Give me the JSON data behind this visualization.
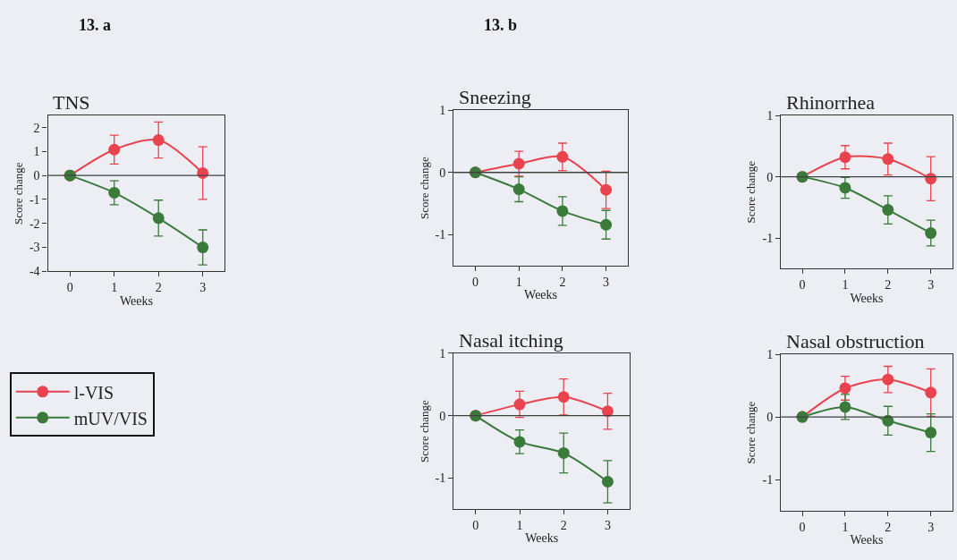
{
  "chart_data": [
    {
      "type": "line",
      "title": "TNS",
      "xlabel": "Weeks",
      "ylabel": "Score change",
      "annotations": [
        "13. a"
      ],
      "x": [
        0,
        1,
        2,
        3
      ],
      "xlim": [
        -0.5,
        3.5
      ],
      "xticks": [
        0,
        1,
        2,
        3
      ],
      "ylim": [
        -4,
        2.5
      ],
      "yticks": [
        -4,
        -3,
        -2,
        -1,
        0,
        1,
        2
      ],
      "grid": false,
      "marker": "circle",
      "line_style": "solid",
      "legend": "bottom",
      "ref_lines": [
        {
          "axis": "y",
          "value": 0,
          "color": "#404040"
        }
      ],
      "series": [
        {
          "name": "l-VIS",
          "color": "#e8434f",
          "values": [
            0,
            1.08,
            1.48,
            0.1
          ],
          "errors": [
            null,
            0.6,
            0.75,
            1.1
          ]
        },
        {
          "name": "mUV/VIS",
          "color": "#3a7a3a",
          "values": [
            0,
            -0.72,
            -1.78,
            -3.0
          ],
          "errors": [
            null,
            0.5,
            0.75,
            0.73
          ]
        }
      ]
    },
    {
      "type": "line",
      "title": "Sneezing",
      "xlabel": "Weeks",
      "ylabel": "Score change",
      "annotations": [
        "13. b"
      ],
      "x": [
        0,
        1,
        2,
        3
      ],
      "xlim": [
        -0.5,
        3.5
      ],
      "xticks": [
        0,
        1,
        2,
        3
      ],
      "ylim": [
        -1.5,
        1
      ],
      "yticks": [
        -1,
        0,
        1
      ],
      "grid": false,
      "marker": "circle",
      "line_style": "solid",
      "ref_lines": [
        {
          "axis": "y",
          "value": 0,
          "color": "#404040"
        }
      ],
      "series": [
        {
          "color": "#e8434f",
          "values": [
            0,
            0.14,
            0.25,
            -0.28
          ],
          "errors": [
            null,
            0.2,
            0.22,
            0.3
          ]
        },
        {
          "color": "#3a7a3a",
          "values": [
            0,
            -0.27,
            -0.62,
            -0.84
          ],
          "errors": [
            null,
            0.2,
            0.23,
            0.23
          ]
        }
      ]
    },
    {
      "type": "line",
      "title": "Rhinorrhea",
      "xlabel": "Weeks",
      "ylabel": "Score change",
      "x": [
        0,
        1,
        2,
        3
      ],
      "xlim": [
        -0.5,
        3.5
      ],
      "xticks": [
        0,
        1,
        2,
        3
      ],
      "ylim": [
        -1.5,
        1
      ],
      "yticks": [
        -1,
        0,
        1
      ],
      "grid": false,
      "marker": "circle",
      "line_style": "solid",
      "ref_lines": [
        {
          "axis": "y",
          "value": 0,
          "color": "#404040"
        }
      ],
      "series": [
        {
          "color": "#e8434f",
          "values": [
            0,
            0.32,
            0.29,
            -0.03
          ],
          "errors": [
            null,
            0.19,
            0.26,
            0.36
          ]
        },
        {
          "color": "#3a7a3a",
          "values": [
            0,
            -0.18,
            -0.54,
            -0.92
          ],
          "errors": [
            null,
            0.17,
            0.23,
            0.21
          ]
        }
      ]
    },
    {
      "type": "line",
      "title": "Nasal itching",
      "xlabel": "Weeks",
      "ylabel": "Score change",
      "x": [
        0,
        1,
        2,
        3
      ],
      "xlim": [
        -0.5,
        3.5
      ],
      "xticks": [
        0,
        1,
        2,
        3
      ],
      "ylim": [
        -1.5,
        1
      ],
      "yticks": [
        -1,
        0,
        1
      ],
      "grid": false,
      "marker": "circle",
      "line_style": "solid",
      "ref_lines": [
        {
          "axis": "y",
          "value": 0,
          "color": "#404040"
        }
      ],
      "series": [
        {
          "color": "#e8434f",
          "values": [
            0,
            0.18,
            0.3,
            0.07
          ],
          "errors": [
            null,
            0.21,
            0.29,
            0.29
          ]
        },
        {
          "color": "#3a7a3a",
          "values": [
            0,
            -0.42,
            -0.6,
            -1.06
          ],
          "errors": [
            null,
            0.19,
            0.32,
            0.34
          ]
        }
      ]
    },
    {
      "type": "line",
      "title": "Nasal obstruction",
      "xlabel": "Weeks",
      "ylabel": "Score change",
      "x": [
        0,
        1,
        2,
        3
      ],
      "xlim": [
        -0.5,
        3.5
      ],
      "xticks": [
        0,
        1,
        2,
        3
      ],
      "ylim": [
        -1.5,
        1
      ],
      "yticks": [
        -1,
        0,
        1
      ],
      "grid": false,
      "marker": "circle",
      "line_style": "solid",
      "ref_lines": [
        {
          "axis": "y",
          "value": 0,
          "color": "#404040"
        }
      ],
      "series": [
        {
          "color": "#e8434f",
          "values": [
            0,
            0.46,
            0.6,
            0.39
          ],
          "errors": [
            null,
            0.19,
            0.21,
            0.38
          ]
        },
        {
          "color": "#3a7a3a",
          "values": [
            0,
            0.16,
            -0.06,
            -0.25
          ],
          "errors": [
            null,
            0.2,
            0.23,
            0.3
          ]
        }
      ]
    }
  ]
}
